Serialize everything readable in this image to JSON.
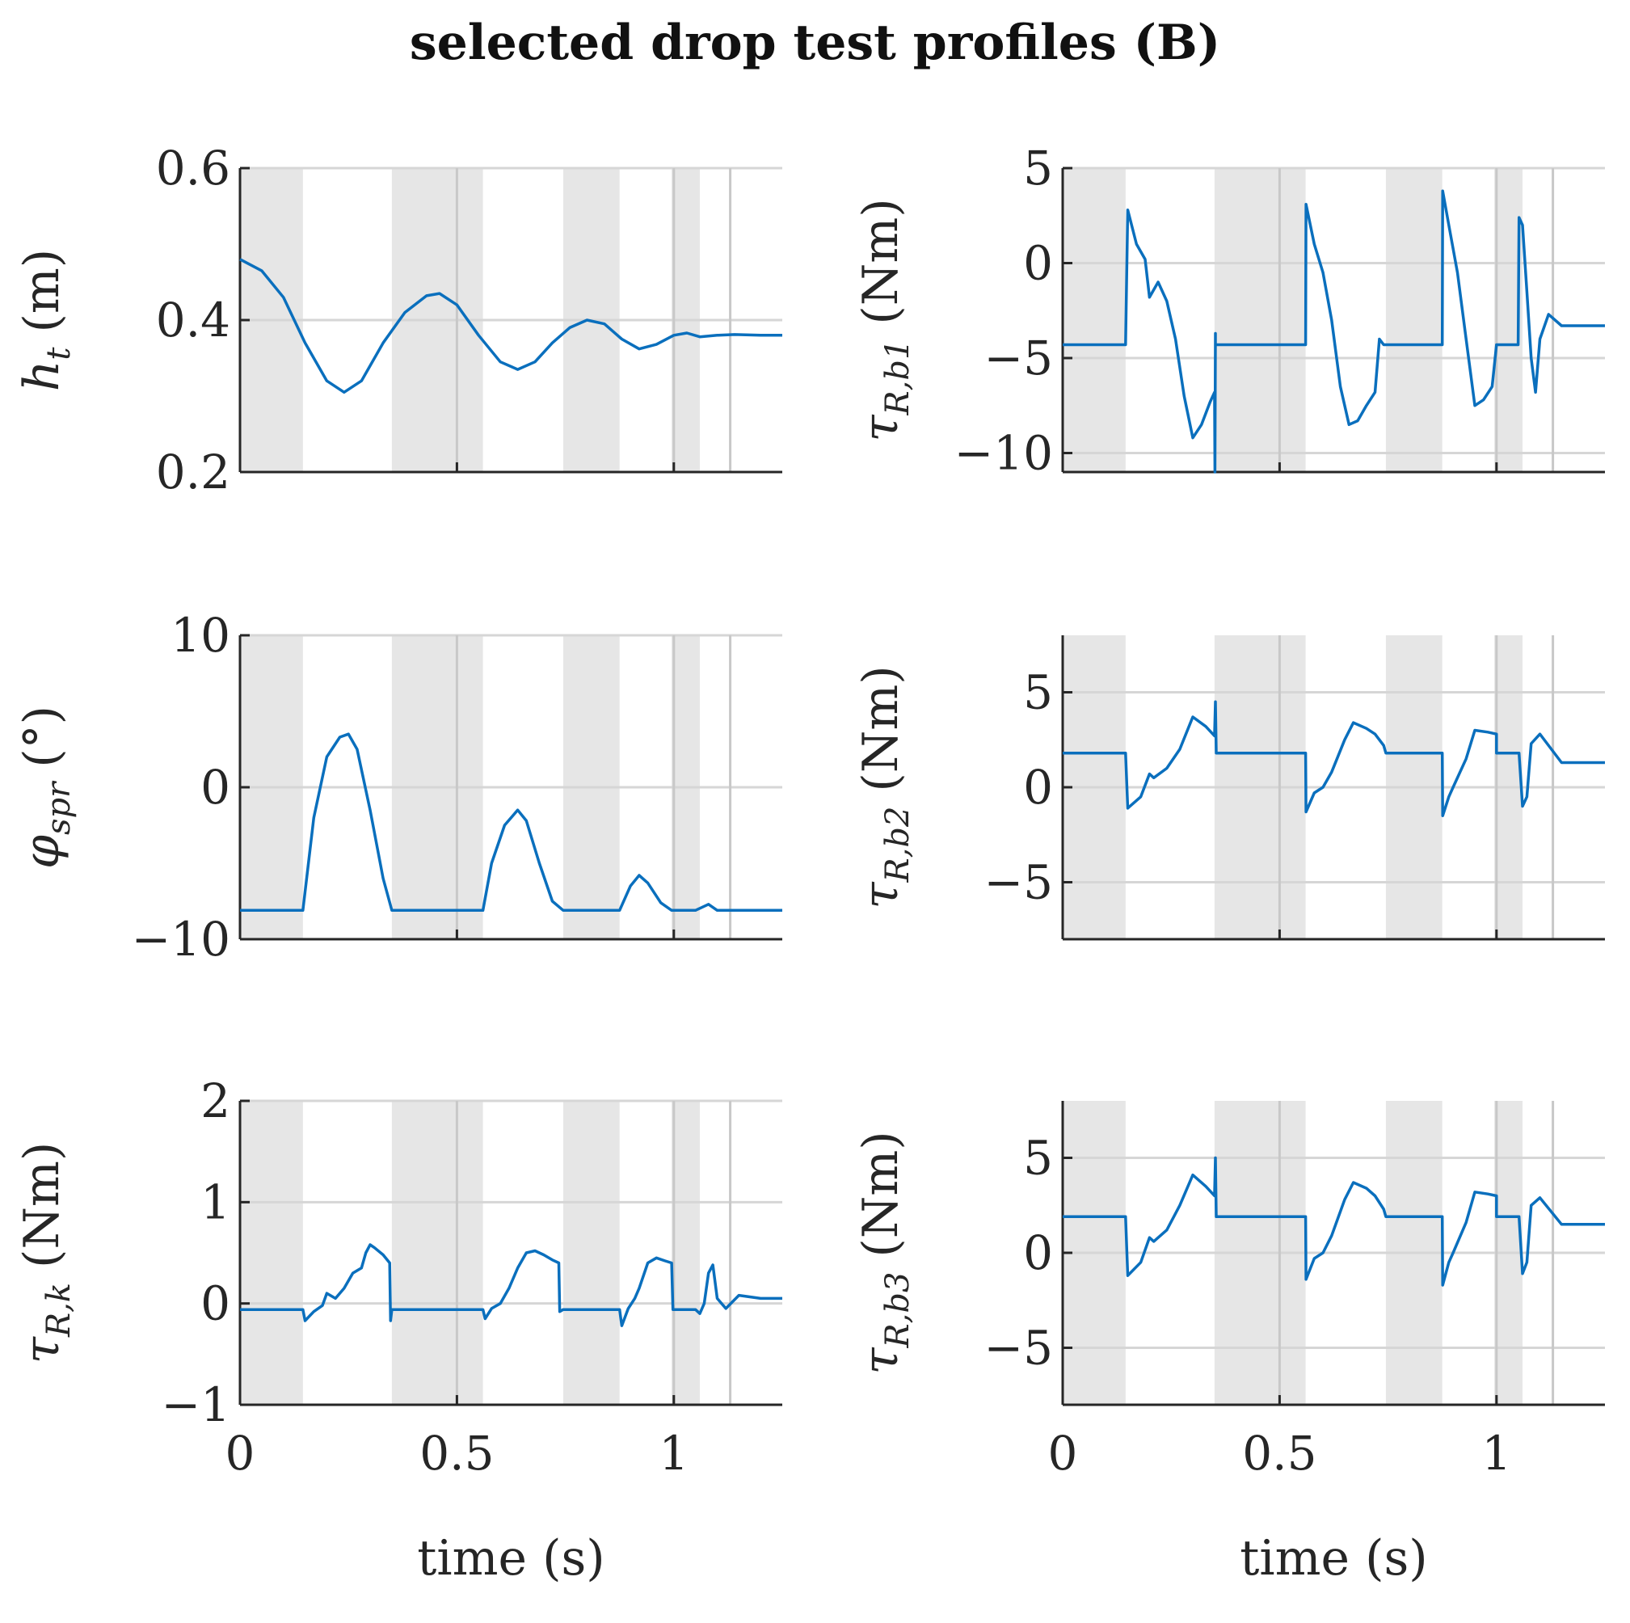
{
  "figure": {
    "title": "selected drop test profiles (B)"
  },
  "shaded_intervals": [
    [
      0,
      0.145
    ],
    [
      0.35,
      0.56
    ],
    [
      0.745,
      0.875
    ],
    [
      0.995,
      1.06
    ]
  ],
  "vertical_lines": [
    0.5,
    1.0,
    1.13
  ],
  "line_color": "#0a6fbd",
  "chart_data": [
    {
      "type": "line",
      "panel": "ht",
      "ylabel": "h_t (m)",
      "ylabel_main": "h",
      "ylabel_sub": "t",
      "ylabel_unit": "(m)",
      "xlabel": "",
      "xlim": [
        0,
        1.25
      ],
      "ylim": [
        0.2,
        0.6
      ],
      "yticks": [
        0.2,
        0.4,
        0.6
      ],
      "ytick_labels": [
        "0.2",
        "0.4",
        "0.6"
      ],
      "xticks": [
        0,
        0.5,
        1
      ],
      "x": [
        0,
        0.05,
        0.1,
        0.15,
        0.2,
        0.24,
        0.28,
        0.33,
        0.38,
        0.43,
        0.46,
        0.5,
        0.55,
        0.6,
        0.64,
        0.68,
        0.72,
        0.76,
        0.8,
        0.84,
        0.88,
        0.92,
        0.96,
        1.0,
        1.03,
        1.06,
        1.1,
        1.14,
        1.2,
        1.25
      ],
      "values": [
        0.48,
        0.465,
        0.43,
        0.37,
        0.32,
        0.305,
        0.32,
        0.37,
        0.41,
        0.432,
        0.435,
        0.42,
        0.38,
        0.345,
        0.335,
        0.345,
        0.37,
        0.39,
        0.4,
        0.395,
        0.375,
        0.362,
        0.368,
        0.38,
        0.383,
        0.378,
        0.38,
        0.381,
        0.38,
        0.38
      ]
    },
    {
      "type": "line",
      "panel": "tau_b1",
      "ylabel": "τ_R,b1 (Nm)",
      "ylabel_main": "τ",
      "ylabel_sub": "R,b1",
      "ylabel_unit": "(Nm)",
      "xlabel": "",
      "xlim": [
        0,
        1.25
      ],
      "ylim": [
        -11,
        5
      ],
      "yticks": [
        -10,
        -5,
        0,
        5
      ],
      "ytick_labels": [
        "−10",
        "−5",
        "0",
        "5"
      ],
      "xticks": [
        0,
        0.5,
        1
      ],
      "x": [
        0,
        0.14,
        0.145,
        0.15,
        0.17,
        0.19,
        0.2,
        0.22,
        0.24,
        0.26,
        0.28,
        0.3,
        0.32,
        0.34,
        0.35,
        0.351,
        0.352,
        0.352,
        0.56,
        0.561,
        0.58,
        0.6,
        0.62,
        0.64,
        0.66,
        0.68,
        0.7,
        0.72,
        0.73,
        0.74,
        0.745,
        0.875,
        0.876,
        0.89,
        0.91,
        0.93,
        0.95,
        0.97,
        0.99,
        1.0,
        1.0,
        1.05,
        1.052,
        1.06,
        1.07,
        1.08,
        1.09,
        1.1,
        1.12,
        1.15,
        1.2,
        1.25
      ],
      "values": [
        -4.3,
        -4.3,
        -4.3,
        2.8,
        1.0,
        0.2,
        -1.8,
        -1.0,
        -2.0,
        -4.0,
        -7.0,
        -9.2,
        -8.5,
        -7.3,
        -6.8,
        -11,
        -3.7,
        -4.3,
        -4.3,
        3.1,
        1.0,
        -0.5,
        -3.0,
        -6.5,
        -8.5,
        -8.3,
        -7.5,
        -6.8,
        -4.0,
        -4.3,
        -4.3,
        -4.3,
        3.8,
        2.0,
        -0.5,
        -4.0,
        -7.5,
        -7.2,
        -6.5,
        -4.3,
        -4.3,
        -4.3,
        2.4,
        2.0,
        -1.5,
        -5.0,
        -6.8,
        -4.0,
        -2.7,
        -3.3,
        -3.3,
        -3.3
      ]
    },
    {
      "type": "line",
      "panel": "phi",
      "ylabel": "φ_spr (°)",
      "ylabel_main": "φ",
      "ylabel_sub": "spr",
      "ylabel_unit": "(°)",
      "xlabel": "",
      "xlim": [
        0,
        1.25
      ],
      "ylim": [
        -10,
        10
      ],
      "yticks": [
        -10,
        0,
        10
      ],
      "ytick_labels": [
        "−10",
        "0",
        "10"
      ],
      "xticks": [
        0,
        0.5,
        1
      ],
      "x": [
        0,
        0.145,
        0.17,
        0.2,
        0.23,
        0.25,
        0.27,
        0.3,
        0.33,
        0.35,
        0.56,
        0.58,
        0.61,
        0.64,
        0.66,
        0.69,
        0.72,
        0.745,
        0.875,
        0.9,
        0.92,
        0.94,
        0.97,
        0.995,
        1.05,
        1.08,
        1.1,
        1.13,
        1.25
      ],
      "values": [
        -8.1,
        -8.1,
        -2.0,
        2.0,
        3.3,
        3.5,
        2.5,
        -1.5,
        -6.0,
        -8.1,
        -8.1,
        -5.0,
        -2.5,
        -1.5,
        -2.2,
        -5.0,
        -7.5,
        -8.1,
        -8.1,
        -6.5,
        -5.8,
        -6.3,
        -7.6,
        -8.1,
        -8.1,
        -7.7,
        -8.1,
        -8.1,
        -8.1
      ]
    },
    {
      "type": "line",
      "panel": "tau_b2",
      "ylabel": "τ_R,b2 (Nm)",
      "ylabel_main": "τ",
      "ylabel_sub": "R,b2",
      "ylabel_unit": "(Nm)",
      "xlabel": "",
      "xlim": [
        0,
        1.25
      ],
      "ylim": [
        -8,
        8
      ],
      "yticks": [
        -5,
        0,
        5
      ],
      "ytick_labels": [
        "−5",
        "0",
        "5"
      ],
      "xticks": [
        0,
        0.5,
        1
      ],
      "x": [
        0,
        0.14,
        0.145,
        0.15,
        0.18,
        0.2,
        0.21,
        0.24,
        0.27,
        0.3,
        0.33,
        0.35,
        0.352,
        0.354,
        0.56,
        0.561,
        0.58,
        0.6,
        0.62,
        0.65,
        0.67,
        0.7,
        0.72,
        0.74,
        0.745,
        0.875,
        0.876,
        0.89,
        0.9,
        0.93,
        0.95,
        0.98,
        1.0,
        1.0,
        1.05,
        1.052,
        1.06,
        1.07,
        1.08,
        1.1,
        1.15,
        1.25
      ],
      "values": [
        1.8,
        1.8,
        1.8,
        -1.1,
        -0.5,
        0.7,
        0.5,
        1.0,
        2.0,
        3.7,
        3.2,
        2.7,
        4.5,
        1.8,
        1.8,
        -1.3,
        -0.3,
        0.0,
        0.8,
        2.5,
        3.4,
        3.1,
        2.8,
        2.2,
        1.8,
        1.8,
        -1.5,
        -0.5,
        0.0,
        1.5,
        3.0,
        2.9,
        2.8,
        1.8,
        1.8,
        1.8,
        -1.0,
        -0.5,
        2.3,
        2.8,
        1.3,
        1.3
      ]
    },
    {
      "type": "line",
      "panel": "tau_k",
      "ylabel": "τ_R,k (Nm)",
      "ylabel_main": "τ",
      "ylabel_sub": "R,k",
      "ylabel_unit": "(Nm)",
      "xlabel": "time (s)",
      "xlim": [
        0,
        1.25
      ],
      "ylim": [
        -1,
        2
      ],
      "yticks": [
        -1,
        0,
        1,
        2
      ],
      "ytick_labels": [
        "−1",
        "0",
        "1",
        "2"
      ],
      "xticks": [
        0,
        0.5,
        1
      ],
      "xtick_labels": [
        "0",
        "0.5",
        "1"
      ],
      "x": [
        0,
        0.14,
        0.145,
        0.15,
        0.17,
        0.19,
        0.2,
        0.22,
        0.24,
        0.26,
        0.28,
        0.29,
        0.3,
        0.31,
        0.33,
        0.345,
        0.347,
        0.35,
        0.56,
        0.565,
        0.58,
        0.6,
        0.62,
        0.64,
        0.66,
        0.68,
        0.7,
        0.72,
        0.735,
        0.737,
        0.745,
        0.875,
        0.88,
        0.895,
        0.91,
        0.92,
        0.94,
        0.96,
        0.98,
        0.995,
        0.998,
        1.05,
        1.06,
        1.07,
        1.08,
        1.09,
        1.1,
        1.12,
        1.15,
        1.2,
        1.25
      ],
      "values": [
        -0.06,
        -0.06,
        -0.06,
        -0.17,
        -0.08,
        -0.02,
        0.1,
        0.05,
        0.15,
        0.3,
        0.35,
        0.5,
        0.58,
        0.55,
        0.48,
        0.4,
        -0.17,
        -0.06,
        -0.06,
        -0.15,
        -0.05,
        0.0,
        0.15,
        0.35,
        0.5,
        0.52,
        0.48,
        0.43,
        0.4,
        -0.08,
        -0.06,
        -0.06,
        -0.22,
        -0.05,
        0.05,
        0.15,
        0.4,
        0.45,
        0.42,
        0.4,
        -0.06,
        -0.06,
        -0.1,
        0.0,
        0.3,
        0.38,
        0.05,
        -0.05,
        0.08,
        0.05,
        0.05
      ]
    },
    {
      "type": "line",
      "panel": "tau_b3",
      "ylabel": "τ_R,b3 (Nm)",
      "ylabel_main": "τ",
      "ylabel_sub": "R,b3",
      "ylabel_unit": "(Nm)",
      "xlabel": "time (s)",
      "xlim": [
        0,
        1.25
      ],
      "ylim": [
        -8,
        8
      ],
      "yticks": [
        -5,
        0,
        5
      ],
      "ytick_labels": [
        "−5",
        "0",
        "5"
      ],
      "xticks": [
        0,
        0.5,
        1
      ],
      "xtick_labels": [
        "0",
        "0.5",
        "1"
      ],
      "x": [
        0,
        0.14,
        0.145,
        0.15,
        0.18,
        0.2,
        0.21,
        0.24,
        0.27,
        0.3,
        0.33,
        0.35,
        0.352,
        0.354,
        0.56,
        0.561,
        0.58,
        0.6,
        0.62,
        0.65,
        0.67,
        0.7,
        0.72,
        0.74,
        0.745,
        0.875,
        0.876,
        0.89,
        0.9,
        0.93,
        0.95,
        0.98,
        1.0,
        1.0,
        1.05,
        1.052,
        1.06,
        1.07,
        1.08,
        1.1,
        1.15,
        1.25
      ],
      "values": [
        1.9,
        1.9,
        1.9,
        -1.2,
        -0.5,
        0.8,
        0.6,
        1.2,
        2.5,
        4.1,
        3.5,
        3.0,
        5.0,
        1.9,
        1.9,
        -1.4,
        -0.3,
        0.0,
        0.9,
        2.8,
        3.7,
        3.4,
        3.0,
        2.3,
        1.9,
        1.9,
        -1.7,
        -0.5,
        0.0,
        1.6,
        3.2,
        3.1,
        3.0,
        1.9,
        1.9,
        1.9,
        -1.1,
        -0.5,
        2.5,
        2.9,
        1.5,
        1.5
      ]
    }
  ]
}
